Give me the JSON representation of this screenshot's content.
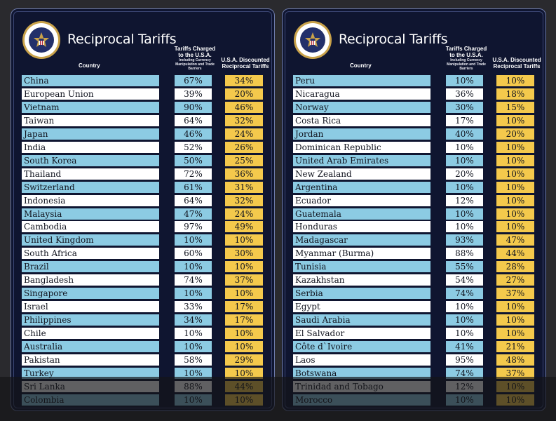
{
  "header": {
    "title": "Reciprocal Tariffs",
    "col_country": "Country",
    "col_charged": "Tariffs Charged to the U.S.A.",
    "col_charged_sub": "Including Currency Manipulation and Trade Barriers",
    "col_discounted": "U.S.A. Discounted Reciprocal Tariffs",
    "seal_label": "SEAL OF THE PRESIDENT OF THE UNITED STATES"
  },
  "colors": {
    "panel_bg": "#0f1530",
    "blue_row": "#8ccbe3",
    "white_row": "#ffffff",
    "tariff_cell": "#f4c94c"
  },
  "left_table": [
    {
      "country": "China",
      "charged": "67%",
      "discounted": "34%"
    },
    {
      "country": "European Union",
      "charged": "39%",
      "discounted": "20%"
    },
    {
      "country": "Vietnam",
      "charged": "90%",
      "discounted": "46%"
    },
    {
      "country": "Taiwan",
      "charged": "64%",
      "discounted": "32%"
    },
    {
      "country": "Japan",
      "charged": "46%",
      "discounted": "24%"
    },
    {
      "country": "India",
      "charged": "52%",
      "discounted": "26%"
    },
    {
      "country": "South Korea",
      "charged": "50%",
      "discounted": "25%"
    },
    {
      "country": "Thailand",
      "charged": "72%",
      "discounted": "36%"
    },
    {
      "country": "Switzerland",
      "charged": "61%",
      "discounted": "31%"
    },
    {
      "country": "Indonesia",
      "charged": "64%",
      "discounted": "32%"
    },
    {
      "country": "Malaysia",
      "charged": "47%",
      "discounted": "24%"
    },
    {
      "country": "Cambodia",
      "charged": "97%",
      "discounted": "49%"
    },
    {
      "country": "United Kingdom",
      "charged": "10%",
      "discounted": "10%"
    },
    {
      "country": "South Africa",
      "charged": "60%",
      "discounted": "30%"
    },
    {
      "country": "Brazil",
      "charged": "10%",
      "discounted": "10%"
    },
    {
      "country": "Bangladesh",
      "charged": "74%",
      "discounted": "37%"
    },
    {
      "country": "Singapore",
      "charged": "10%",
      "discounted": "10%"
    },
    {
      "country": "Israel",
      "charged": "33%",
      "discounted": "17%"
    },
    {
      "country": "Philippines",
      "charged": "34%",
      "discounted": "17%"
    },
    {
      "country": "Chile",
      "charged": "10%",
      "discounted": "10%"
    },
    {
      "country": "Australia",
      "charged": "10%",
      "discounted": "10%"
    },
    {
      "country": "Pakistan",
      "charged": "58%",
      "discounted": "29%"
    },
    {
      "country": "Turkey",
      "charged": "10%",
      "discounted": "10%"
    },
    {
      "country": "Sri Lanka",
      "charged": "88%",
      "discounted": "44%"
    },
    {
      "country": "Colombia",
      "charged": "10%",
      "discounted": "10%"
    }
  ],
  "right_table": [
    {
      "country": "Peru",
      "charged": "10%",
      "discounted": "10%"
    },
    {
      "country": "Nicaragua",
      "charged": "36%",
      "discounted": "18%"
    },
    {
      "country": "Norway",
      "charged": "30%",
      "discounted": "15%"
    },
    {
      "country": "Costa Rica",
      "charged": "17%",
      "discounted": "10%"
    },
    {
      "country": "Jordan",
      "charged": "40%",
      "discounted": "20%"
    },
    {
      "country": "Dominican Republic",
      "charged": "10%",
      "discounted": "10%"
    },
    {
      "country": "United Arab Emirates",
      "charged": "10%",
      "discounted": "10%"
    },
    {
      "country": "New Zealand",
      "charged": "20%",
      "discounted": "10%"
    },
    {
      "country": "Argentina",
      "charged": "10%",
      "discounted": "10%"
    },
    {
      "country": "Ecuador",
      "charged": "12%",
      "discounted": "10%"
    },
    {
      "country": "Guatemala",
      "charged": "10%",
      "discounted": "10%"
    },
    {
      "country": "Honduras",
      "charged": "10%",
      "discounted": "10%"
    },
    {
      "country": "Madagascar",
      "charged": "93%",
      "discounted": "47%"
    },
    {
      "country": "Myanmar (Burma)",
      "charged": "88%",
      "discounted": "44%"
    },
    {
      "country": "Tunisia",
      "charged": "55%",
      "discounted": "28%"
    },
    {
      "country": "Kazakhstan",
      "charged": "54%",
      "discounted": "27%"
    },
    {
      "country": "Serbia",
      "charged": "74%",
      "discounted": "37%"
    },
    {
      "country": "Egypt",
      "charged": "10%",
      "discounted": "10%"
    },
    {
      "country": "Saudi Arabia",
      "charged": "10%",
      "discounted": "10%"
    },
    {
      "country": "El Salvador",
      "charged": "10%",
      "discounted": "10%"
    },
    {
      "country": "Côte d`Ivoire",
      "charged": "41%",
      "discounted": "21%"
    },
    {
      "country": "Laos",
      "charged": "95%",
      "discounted": "48%"
    },
    {
      "country": "Botswana",
      "charged": "74%",
      "discounted": "37%"
    },
    {
      "country": "Trinidad and Tobago",
      "charged": "12%",
      "discounted": "10%"
    },
    {
      "country": "Morocco",
      "charged": "10%",
      "discounted": "10%"
    }
  ]
}
